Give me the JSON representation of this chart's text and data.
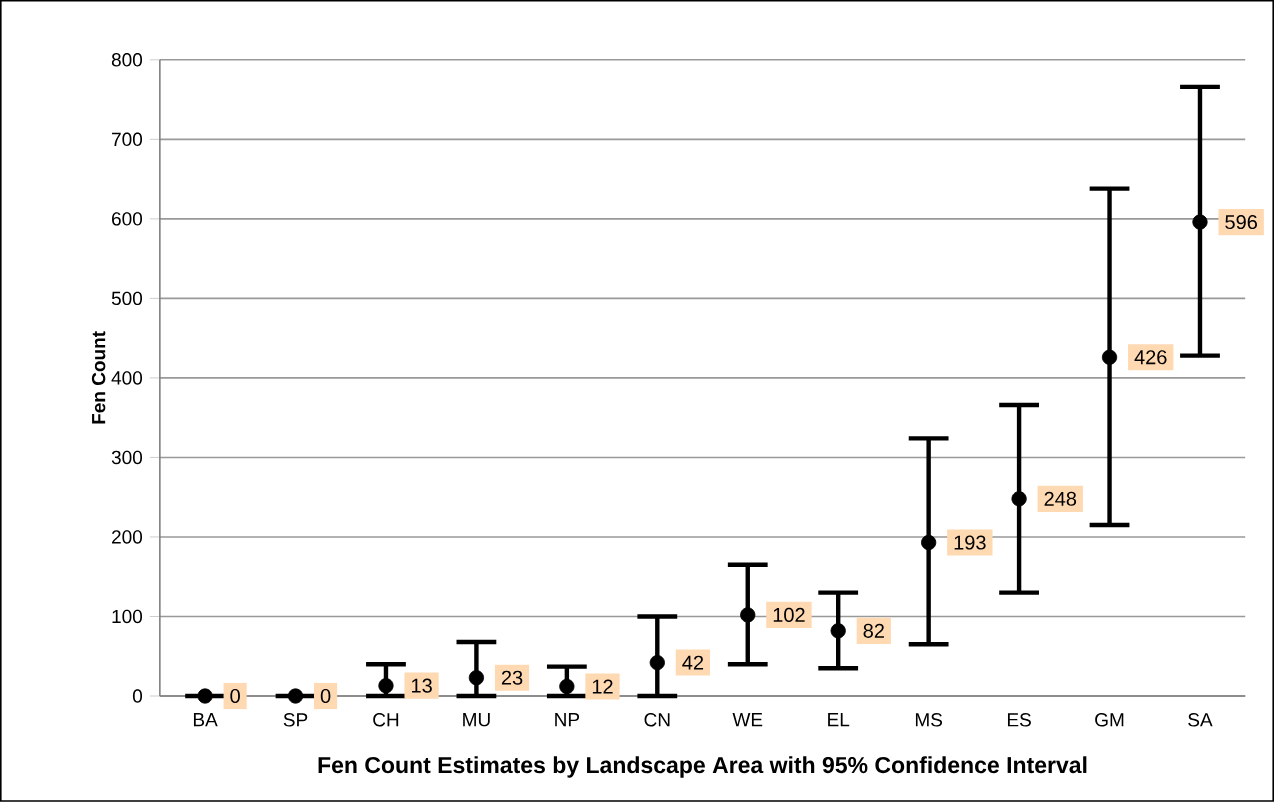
{
  "chart_data": {
    "type": "scatter",
    "xlabel": "Fen Count Estimates by Landscape Area with 95% Confidence Interval",
    "ylabel": "Fen Count",
    "categories": [
      "BA",
      "SP",
      "CH",
      "MU",
      "NP",
      "CN",
      "WE",
      "EL",
      "MS",
      "ES",
      "GM",
      "SA"
    ],
    "values": [
      0,
      0,
      13,
      23,
      12,
      42,
      102,
      82,
      193,
      248,
      426,
      596
    ],
    "errors": [
      [
        0,
        0
      ],
      [
        0,
        0
      ],
      [
        0,
        40
      ],
      [
        0,
        68
      ],
      [
        0,
        37
      ],
      [
        0,
        100
      ],
      [
        40,
        165
      ],
      [
        35,
        130
      ],
      [
        65,
        324
      ],
      [
        130,
        366
      ],
      [
        215,
        638
      ],
      [
        428,
        766
      ]
    ],
    "color": "#000000",
    "marker": "circle",
    "data_labels": true,
    "grid": "y",
    "ylim": [
      0,
      800
    ],
    "yticks": [
      0,
      100,
      200,
      300,
      400,
      500,
      600,
      700,
      800
    ]
  }
}
